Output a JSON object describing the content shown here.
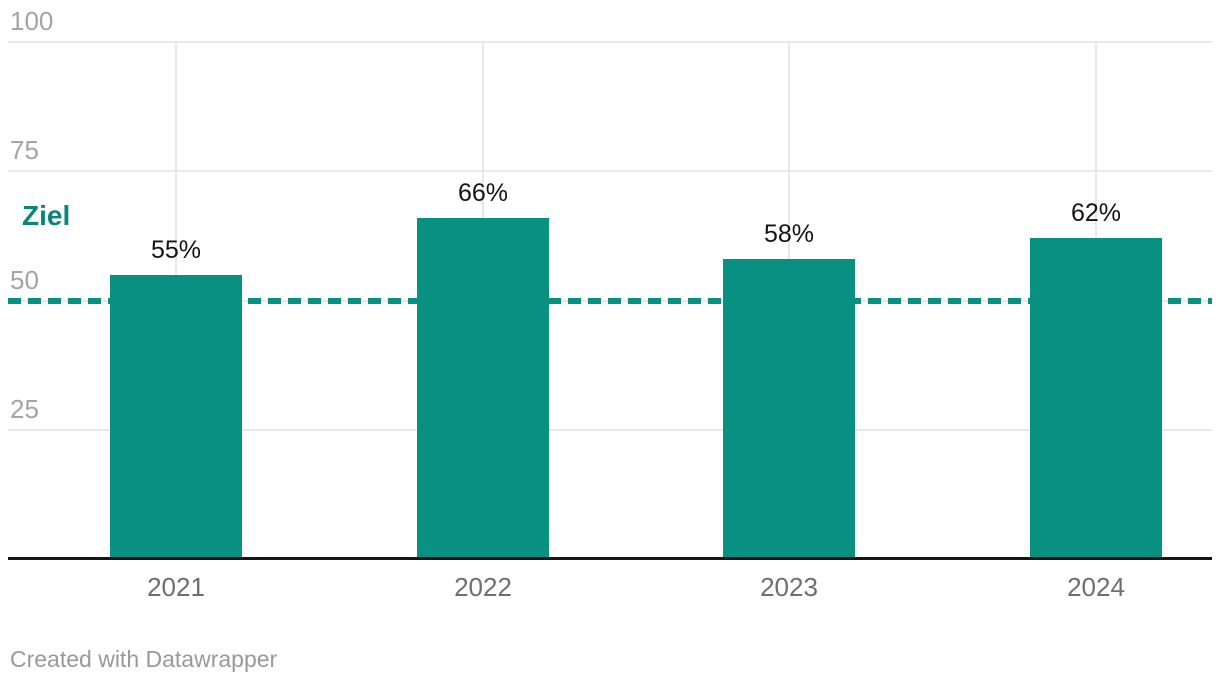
{
  "chart_data": {
    "type": "bar",
    "title": "",
    "xlabel": "",
    "ylabel": "",
    "categories": [
      "2021",
      "2022",
      "2023",
      "2024"
    ],
    "values": [
      55,
      66,
      58,
      62
    ],
    "value_labels": [
      "55%",
      "66%",
      "58%",
      "62%"
    ],
    "ylim": [
      0,
      100
    ],
    "yticks": [
      100,
      75,
      50,
      25
    ],
    "grid": true,
    "legend": "none",
    "reference_line": {
      "label": "Ziel",
      "value": 50,
      "style": "dashed"
    },
    "colors": {
      "bar": "#089180",
      "reference_line": "#089180",
      "reference_label": "#0a8578",
      "value_label": "#141414",
      "tick_label": "#a4a4a4",
      "category_label": "#6e6e6e",
      "gridline": "#e8e8e8",
      "axis_line": "#161616",
      "footer": "#999999",
      "background": "#ffffff"
    }
  },
  "footer": {
    "credit": "Created with Datawrapper"
  }
}
